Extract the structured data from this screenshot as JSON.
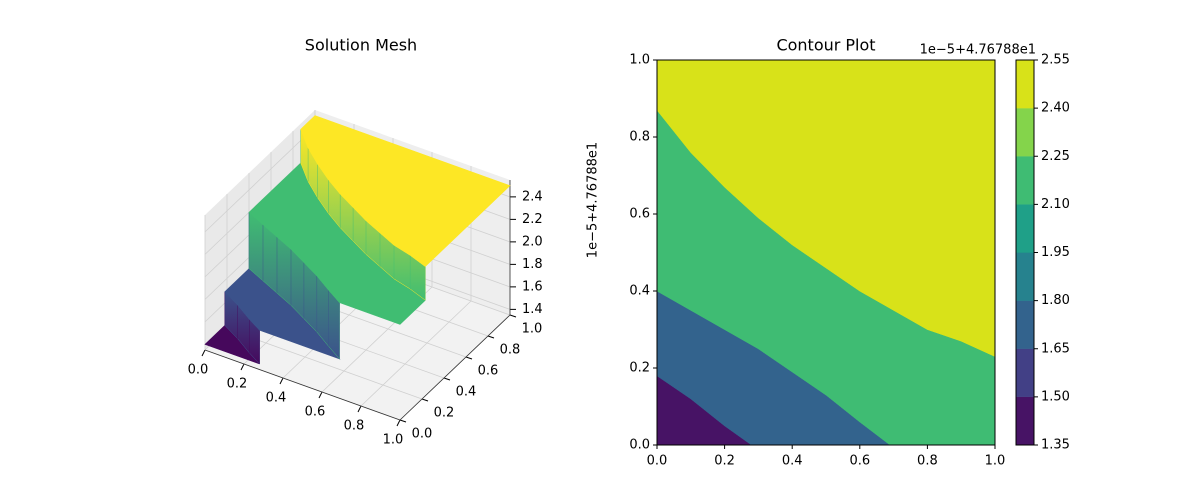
{
  "chart_data": [
    {
      "type": "surface3d",
      "title": "Solution Mesh",
      "offset_text": "1e−5+4.76788e1",
      "xlim": [
        0,
        1
      ],
      "ylim": [
        0,
        1
      ],
      "zlim": [
        1.35,
        2.55
      ],
      "xticks": [
        {
          "value": 0,
          "label": "0.0"
        },
        0.2,
        0.4,
        0.6,
        0.8,
        {
          "value": 1,
          "label": "1.0"
        }
      ],
      "yticks": [
        {
          "value": 0,
          "label": "0.0"
        },
        0.2,
        0.4,
        0.6,
        0.8,
        {
          "value": 1,
          "label": "1.0"
        }
      ],
      "zticks": [
        1.4,
        1.6,
        1.8,
        {
          "value": 2,
          "label": "2.0"
        },
        2.2,
        2.4
      ],
      "boundaries": [
        {
          "x": [
            0,
            0.1,
            0.2,
            0.28
          ],
          "y": [
            0.18,
            0.12,
            0.05,
            0
          ]
        },
        {
          "x": [
            0,
            0.1,
            0.2,
            0.3,
            0.4,
            0.5,
            0.6,
            0.69
          ],
          "y": [
            0.4,
            0.35,
            0.3,
            0.25,
            0.19,
            0.13,
            0.06,
            0
          ]
        },
        {
          "x": [
            0,
            0.1,
            0.2,
            0.3,
            0.4,
            0.5,
            0.6,
            0.7,
            0.8,
            0.9,
            1
          ],
          "y": [
            0.87,
            0.76,
            0.67,
            0.59,
            0.52,
            0.46,
            0.4,
            0.35,
            0.3,
            0.27,
            0.23
          ]
        }
      ],
      "levels": [
        1.4,
        1.7,
        2.2,
        2.5
      ],
      "colors": [
        "#46085c",
        "#3b528b",
        "#40bd72",
        "#fde725"
      ]
    },
    {
      "type": "contour",
      "title": "Contour Plot",
      "xlim": [
        0,
        1
      ],
      "ylim": [
        0,
        1
      ],
      "xticks": [
        {
          "value": 0,
          "label": "0.0"
        },
        0.2,
        0.4,
        0.6,
        0.8,
        {
          "value": 1,
          "label": "1.0"
        }
      ],
      "yticks": [
        {
          "value": 0,
          "label": "0.0"
        },
        0.2,
        0.4,
        0.6,
        0.8,
        {
          "value": 1,
          "label": "1.0"
        }
      ],
      "boundaries": [
        {
          "x": [
            0,
            0.1,
            0.2,
            0.28
          ],
          "y": [
            0.18,
            0.12,
            0.05,
            0
          ]
        },
        {
          "x": [
            0,
            0.1,
            0.2,
            0.3,
            0.4,
            0.5,
            0.6,
            0.69
          ],
          "y": [
            0.4,
            0.35,
            0.3,
            0.25,
            0.19,
            0.13,
            0.06,
            0
          ]
        },
        {
          "x": [
            0,
            0.1,
            0.2,
            0.3,
            0.4,
            0.5,
            0.6,
            0.7,
            0.8,
            0.9,
            1
          ],
          "y": [
            0.87,
            0.76,
            0.67,
            0.59,
            0.52,
            0.46,
            0.4,
            0.35,
            0.3,
            0.27,
            0.23
          ]
        }
      ],
      "region_colors": [
        "#471365",
        "#33638d",
        "#3fbc73",
        "#d8e219"
      ],
      "colorbar": {
        "offset_text": "1e−5+4.76788e1",
        "levels": [
          1.35,
          {
            "value": 1.5,
            "label": "1.50"
          },
          1.65,
          {
            "value": 1.8,
            "label": "1.80"
          },
          1.95,
          {
            "value": 2.1,
            "label": "2.10"
          },
          2.25,
          {
            "value": 2.4,
            "label": "2.40"
          },
          2.55
        ],
        "colors": [
          "#471365",
          "#424086",
          "#33638d",
          "#26828e",
          "#1fa088",
          "#3fbc73",
          "#84d44b",
          "#d8e219"
        ]
      }
    }
  ]
}
